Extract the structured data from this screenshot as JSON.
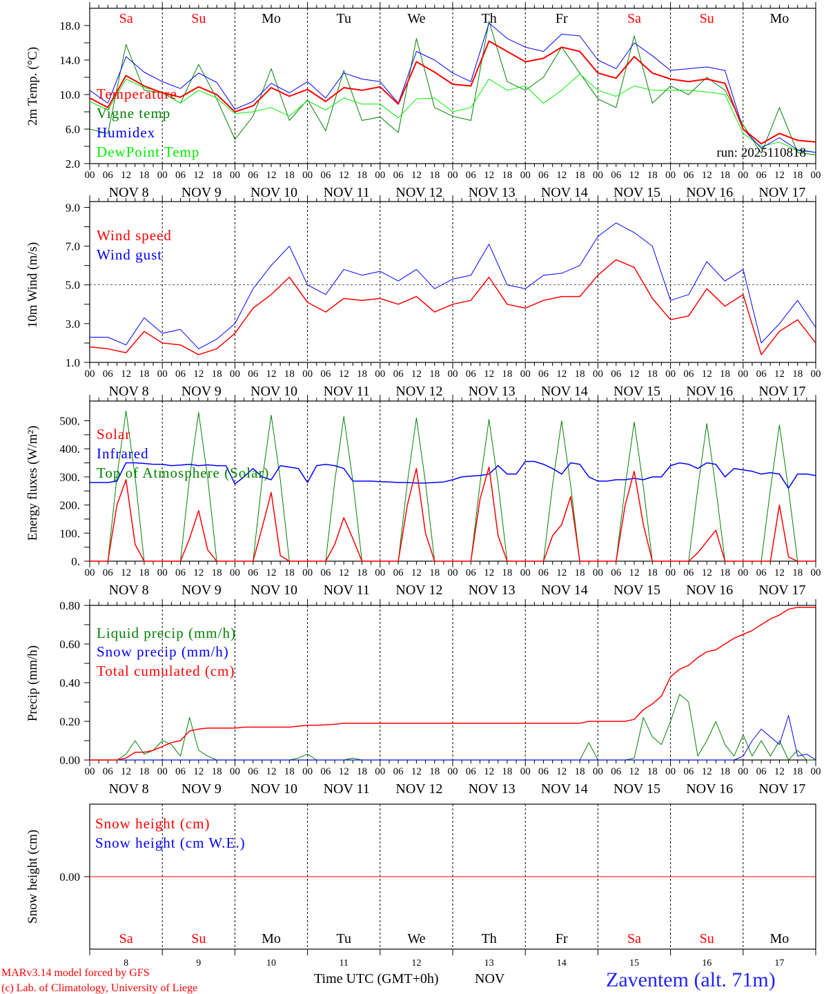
{
  "days": {
    "names": [
      "Sa",
      "Su",
      "Mo",
      "Tu",
      "We",
      "Th",
      "Fr",
      "Sa",
      "Su",
      "Mo"
    ],
    "weekend": [
      true,
      true,
      false,
      false,
      false,
      false,
      false,
      true,
      true,
      false
    ],
    "dates": [
      "NOV  8",
      "NOV  9",
      "NOV 10",
      "NOV 11",
      "NOV 12",
      "NOV 13",
      "NOV 14",
      "NOV 15",
      "NOV 16",
      "NOV 17"
    ],
    "numbers": [
      "8",
      "9",
      "10",
      "11",
      "12",
      "13",
      "14",
      "15",
      "16",
      "17"
    ]
  },
  "hour_ticks": [
    "00",
    "06",
    "12",
    "18"
  ],
  "colors": {
    "red": "#ff0000",
    "green": "#008000",
    "blue": "#0000ff",
    "lime": "#00ee00",
    "weekend": "#ff0000",
    "weekday": "#000000"
  },
  "chart_data": [
    {
      "type": "line",
      "ylabel": "2m Temp. (°C)",
      "ylim": [
        2,
        20
      ],
      "yticks": [
        "2.0",
        "6.0",
        "10.0",
        "14.0",
        "18.0"
      ],
      "interval_hours": 6,
      "annotation": "run: 2025110818",
      "series": [
        {
          "name": "Vigne temp",
          "color": "#008000",
          "width": 1,
          "values": [
            6.0,
            5.5,
            15.8,
            10.5,
            10.2,
            9.0,
            13.5,
            9.5,
            4.8,
            7.5,
            13.0,
            7.0,
            9.4,
            5.8,
            12.8,
            7.0,
            7.4,
            5.6,
            16.5,
            8.5,
            7.5,
            7.0,
            18.5,
            11.5,
            10.5,
            12.0,
            15.5,
            12.5,
            9.5,
            8.5,
            16.8,
            9.0,
            11.0,
            10.0,
            12.0,
            10.5,
            6.5,
            3.2,
            8.5,
            3.3,
            3.0
          ]
        },
        {
          "name": "DewPoint Temp",
          "color": "#00ee00",
          "width": 1,
          "values": [
            9.2,
            8.2,
            11.8,
            10.8,
            10.3,
            9.0,
            10.5,
            9.6,
            7.8,
            8.0,
            8.5,
            7.5,
            9.3,
            8.2,
            9.6,
            8.9,
            8.9,
            7.3,
            9.5,
            9.6,
            8.0,
            8.5,
            11.8,
            10.5,
            11.0,
            9.0,
            10.5,
            12.4,
            10.5,
            9.8,
            11.0,
            10.5,
            10.5,
            10.5,
            10.3,
            10.0,
            5.5,
            4.0,
            4.5,
            3.5,
            3.3
          ]
        },
        {
          "name": "Humidex",
          "color": "#0000ff",
          "width": 1,
          "values": [
            10.5,
            9.0,
            14.4,
            12.6,
            11.5,
            10.7,
            12.5,
            11.4,
            8.3,
            9.2,
            11.3,
            10.2,
            11.5,
            9.6,
            12.5,
            11.8,
            11.5,
            9.0,
            15.0,
            14.0,
            12.5,
            11.5,
            18.3,
            16.5,
            15.5,
            15.0,
            17.0,
            16.8,
            14.0,
            13.0,
            16.0,
            14.5,
            12.8,
            13.0,
            13.2,
            12.8,
            6.0,
            3.8,
            5.0,
            3.6,
            3.3
          ]
        },
        {
          "name": "Temperature",
          "color": "#ff0000",
          "width": 2,
          "values": [
            9.6,
            8.5,
            12.2,
            11.0,
            10.2,
            9.7,
            10.9,
            10.0,
            8.0,
            8.7,
            10.8,
            9.8,
            10.6,
            9.2,
            10.8,
            10.5,
            10.9,
            8.9,
            13.8,
            12.6,
            11.2,
            11.0,
            16.2,
            15.0,
            13.8,
            14.2,
            15.5,
            15.0,
            12.5,
            11.9,
            14.4,
            12.5,
            11.8,
            11.5,
            11.8,
            11.3,
            6.0,
            4.3,
            5.5,
            4.7,
            4.5
          ]
        }
      ],
      "legend": [
        "Temperature",
        "Vigne temp",
        "Humidex",
        "DewPoint Temp"
      ]
    },
    {
      "type": "line",
      "ylabel": "10m Wind (m/s)",
      "ylim": [
        1,
        9.3
      ],
      "yticks": [
        "1.0",
        "3.0",
        "5.0",
        "7.0",
        "9.0"
      ],
      "gridline": 5.0,
      "interval_hours": 6,
      "series": [
        {
          "name": "Wind speed",
          "color": "#ff0000",
          "width": 1.5,
          "values": [
            1.8,
            1.7,
            1.5,
            2.6,
            2.0,
            1.9,
            1.4,
            1.7,
            2.5,
            3.8,
            4.5,
            5.4,
            4.1,
            3.6,
            4.3,
            4.2,
            4.3,
            4.0,
            4.4,
            3.6,
            4.0,
            4.2,
            5.4,
            4.0,
            3.8,
            4.2,
            4.4,
            4.4,
            5.5,
            6.3,
            5.9,
            4.3,
            3.2,
            3.4,
            4.8,
            3.9,
            4.5,
            1.4,
            2.6,
            3.2,
            2.0
          ]
        },
        {
          "name": "Wind gust",
          "color": "#0000ff",
          "width": 1,
          "values": [
            2.3,
            2.3,
            1.9,
            3.3,
            2.5,
            2.7,
            1.7,
            2.2,
            3.0,
            4.8,
            6.0,
            7.0,
            5.0,
            4.5,
            5.8,
            5.5,
            5.7,
            5.2,
            5.8,
            4.8,
            5.3,
            5.5,
            7.1,
            5.0,
            4.8,
            5.5,
            5.6,
            6.0,
            7.5,
            8.2,
            7.7,
            7.0,
            4.2,
            4.5,
            6.2,
            5.2,
            5.8,
            2.0,
            3.0,
            4.2,
            2.8
          ]
        }
      ],
      "legend": [
        "Wind speed",
        "Wind gust"
      ]
    },
    {
      "type": "line",
      "ylabel": "Energy fluxes (W/m²)",
      "ylim": [
        0,
        570
      ],
      "yticks": [
        "0.",
        "100.",
        "200.",
        "300.",
        "400.",
        "500."
      ],
      "interval_hours": 3,
      "series": [
        {
          "name": "Top of Atmosphere (Solar)",
          "color": "#008000",
          "width": 1,
          "values": [
            0,
            0,
            0,
            300,
            535,
            300,
            0,
            0,
            0,
            0,
            0,
            295,
            530,
            295,
            0,
            0,
            0,
            0,
            0,
            290,
            520,
            290,
            0,
            0,
            0,
            0,
            0,
            285,
            515,
            285,
            0,
            0,
            0,
            0,
            0,
            280,
            510,
            280,
            0,
            0,
            0,
            0,
            0,
            275,
            505,
            275,
            0,
            0,
            0,
            0,
            0,
            270,
            500,
            270,
            0,
            0,
            0,
            0,
            0,
            265,
            495,
            265,
            0,
            0,
            0,
            0,
            0,
            260,
            490,
            260,
            0,
            0,
            0,
            0,
            0,
            255,
            485,
            255,
            0,
            0,
            0
          ]
        },
        {
          "name": "Infrared",
          "color": "#0000ff",
          "width": 1.5,
          "values": [
            280,
            280,
            280,
            285,
            350,
            350,
            348,
            345,
            345,
            340,
            342,
            345,
            340,
            343,
            340,
            340,
            275,
            300,
            330,
            300,
            290,
            340,
            335,
            330,
            280,
            340,
            345,
            340,
            330,
            285,
            285,
            285,
            283,
            282,
            280,
            280,
            278,
            278,
            280,
            282,
            290,
            300,
            303,
            305,
            310,
            340,
            310,
            310,
            355,
            355,
            345,
            330,
            310,
            350,
            345,
            300,
            285,
            285,
            290,
            290,
            295,
            290,
            300,
            300,
            340,
            350,
            345,
            330,
            350,
            345,
            300,
            330,
            325,
            320,
            310,
            315,
            310,
            260,
            310,
            310,
            305
          ]
        },
        {
          "name": "Solar",
          "color": "#ff0000",
          "width": 1.5,
          "values": [
            0,
            0,
            0,
            200,
            290,
            60,
            0,
            0,
            0,
            0,
            0,
            80,
            180,
            40,
            0,
            0,
            0,
            0,
            0,
            120,
            245,
            20,
            0,
            0,
            0,
            0,
            0,
            60,
            155,
            80,
            0,
            0,
            0,
            0,
            0,
            200,
            330,
            100,
            0,
            0,
            0,
            0,
            0,
            220,
            335,
            90,
            0,
            0,
            0,
            0,
            0,
            90,
            130,
            230,
            0,
            0,
            0,
            0,
            0,
            200,
            320,
            130,
            0,
            0,
            0,
            0,
            0,
            30,
            70,
            110,
            0,
            0,
            0,
            0,
            0,
            0,
            200,
            15,
            0,
            0,
            0
          ]
        }
      ],
      "legend": [
        "Solar",
        "Infrared",
        "Top of Atmosphere (Solar)"
      ]
    },
    {
      "type": "line",
      "ylabel": "Precip (mm/h)",
      "ylim": [
        0,
        0.8
      ],
      "yticks": [
        "0.00",
        "0.20",
        "0.40",
        "0.60",
        "0.80"
      ],
      "interval_hours": 3,
      "series": [
        {
          "name": "Liquid precip (mm/h)",
          "color": "#008000",
          "width": 1,
          "values": [
            0,
            0,
            0,
            0,
            0.03,
            0.1,
            0.03,
            0.05,
            0.1,
            0.08,
            0.02,
            0.22,
            0.05,
            0.02,
            0,
            0,
            0,
            0,
            0,
            0,
            0,
            0,
            0,
            0.01,
            0.03,
            0,
            0,
            0,
            0,
            0.01,
            0,
            0,
            0,
            0,
            0,
            0,
            0,
            0,
            0,
            0,
            0,
            0,
            0,
            0,
            0,
            0,
            0,
            0,
            0,
            0,
            0,
            0,
            0,
            0,
            0,
            0.09,
            0,
            0,
            0,
            0,
            0.01,
            0.22,
            0.12,
            0.08,
            0.2,
            0.34,
            0.3,
            0.02,
            0.1,
            0.2,
            0.08,
            0.02,
            0.13,
            0.02,
            0.1,
            0.02,
            0.1,
            0,
            0.05,
            0,
            0
          ]
        },
        {
          "name": "Snow precip (mm/h)",
          "color": "#0000ff",
          "width": 1,
          "values": [
            0,
            0,
            0,
            0,
            0,
            0,
            0,
            0,
            0,
            0,
            0,
            0,
            0,
            0,
            0,
            0,
            0,
            0,
            0,
            0,
            0,
            0,
            0,
            0,
            0,
            0,
            0,
            0,
            0,
            0,
            0,
            0,
            0,
            0,
            0,
            0,
            0,
            0,
            0,
            0,
            0,
            0,
            0,
            0,
            0,
            0,
            0,
            0,
            0,
            0,
            0,
            0,
            0,
            0,
            0,
            0,
            0,
            0,
            0,
            0,
            0,
            0,
            0,
            0,
            0,
            0,
            0,
            0,
            0,
            0,
            0,
            0,
            0.02,
            0.1,
            0.16,
            0.12,
            0.08,
            0.23,
            0.02,
            0.03,
            0
          ]
        },
        {
          "name": "Total cumulated (cm)",
          "color": "#ff0000",
          "width": 1.5,
          "values": [
            0,
            0,
            0,
            0,
            0.01,
            0.04,
            0.04,
            0.05,
            0.07,
            0.09,
            0.1,
            0.15,
            0.16,
            0.165,
            0.165,
            0.165,
            0.165,
            0.17,
            0.17,
            0.17,
            0.17,
            0.17,
            0.17,
            0.175,
            0.18,
            0.18,
            0.182,
            0.185,
            0.19,
            0.19,
            0.19,
            0.19,
            0.19,
            0.19,
            0.19,
            0.19,
            0.19,
            0.19,
            0.19,
            0.19,
            0.19,
            0.19,
            0.19,
            0.19,
            0.19,
            0.19,
            0.19,
            0.19,
            0.19,
            0.19,
            0.19,
            0.19,
            0.19,
            0.19,
            0.19,
            0.2,
            0.2,
            0.2,
            0.2,
            0.2,
            0.21,
            0.26,
            0.29,
            0.33,
            0.43,
            0.47,
            0.49,
            0.53,
            0.56,
            0.57,
            0.6,
            0.63,
            0.65,
            0.67,
            0.7,
            0.73,
            0.75,
            0.78,
            0.79,
            0.79,
            0.79
          ]
        }
      ],
      "legend": [
        "Liquid precip (mm/h)",
        "Snow precip (mm/h)",
        "Total cumulated (cm)"
      ]
    },
    {
      "type": "line",
      "ylabel": "Snow height (cm)",
      "ylim": [
        -1,
        1
      ],
      "yticks": [
        "0.00"
      ],
      "interval_hours": 240,
      "series": [
        {
          "name": "Snow height (cm W.E.)",
          "color": "#0000ff",
          "width": 1,
          "values": [
            0,
            0
          ]
        },
        {
          "name": "Snow height (cm)",
          "color": "#ff0000",
          "width": 1,
          "values": [
            0,
            0
          ]
        }
      ],
      "legend": [
        "Snow height (cm)",
        "Snow height (cm W.E.)"
      ]
    }
  ],
  "footer": {
    "model": "MARv3.14 model forced by GFS",
    "credit": "(c) Lab. of Climatology, University of Liege",
    "xlabel": "Time UTC (GMT+0h)",
    "month": "NOV",
    "station": "Zaventem (alt. 71m)"
  }
}
